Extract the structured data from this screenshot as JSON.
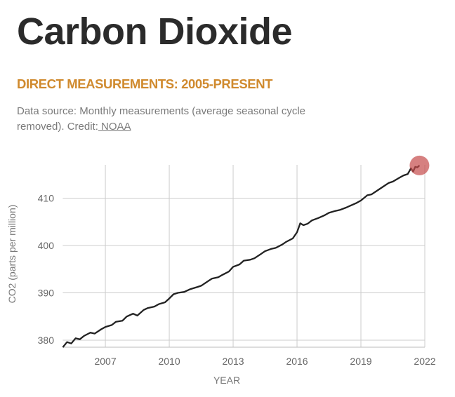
{
  "header": {
    "title": "Carbon Dioxide",
    "subtitle": "DIRECT MEASUREMENTS: 2005-PRESENT",
    "description": "Data source: Monthly measurements (average seasonal cycle removed). Credit:",
    "credit_link": " NOAA"
  },
  "chart_data": {
    "type": "line",
    "title": "",
    "xlabel": "YEAR",
    "ylabel": "CO2 (parts per million)",
    "xlim": [
      2005,
      2022
    ],
    "ylim": [
      378.5,
      417.2
    ],
    "xticks": [
      2007,
      2010,
      2013,
      2016,
      2019,
      2022
    ],
    "yticks": [
      380,
      390,
      400,
      410
    ],
    "grid": true,
    "line_color": "#222222",
    "highlight_color": "#c44a4a",
    "highlight_point": {
      "x": 2021.75,
      "y": 416.9
    },
    "series": [
      {
        "x": [
          2005.0,
          2005.2,
          2005.4,
          2005.6,
          2005.8,
          2006.0,
          2006.3,
          2006.5,
          2006.8,
          2007.0,
          2007.3,
          2007.5,
          2007.8,
          2008.0,
          2008.3,
          2008.5,
          2008.8,
          2009.0,
          2009.3,
          2009.5,
          2009.8,
          2010.0,
          2010.2,
          2010.4,
          2010.7,
          2011.0,
          2011.3,
          2011.5,
          2011.8,
          2012.0,
          2012.3,
          2012.5,
          2012.8,
          2013.0,
          2013.3,
          2013.5,
          2013.8,
          2014.0,
          2014.3,
          2014.5,
          2014.8,
          2015.0,
          2015.3,
          2015.5,
          2015.8,
          2016.0,
          2016.15,
          2016.3,
          2016.5,
          2016.7,
          2017.0,
          2017.3,
          2017.5,
          2017.8,
          2018.0,
          2018.3,
          2018.5,
          2018.8,
          2019.0,
          2019.3,
          2019.5,
          2019.8,
          2020.0,
          2020.3,
          2020.5,
          2020.8,
          2021.0,
          2021.2,
          2021.35,
          2021.45,
          2021.55,
          2021.65,
          2021.75
        ],
        "y": [
          378.5,
          379.6,
          379.3,
          380.4,
          380.2,
          380.9,
          381.6,
          381.4,
          382.3,
          382.8,
          383.2,
          383.9,
          384.1,
          385.0,
          385.6,
          385.2,
          386.4,
          386.8,
          387.1,
          387.6,
          388.0,
          388.8,
          389.7,
          390.0,
          390.2,
          390.8,
          391.2,
          391.5,
          392.4,
          393.0,
          393.3,
          393.8,
          394.5,
          395.5,
          396.0,
          396.8,
          397.0,
          397.3,
          398.2,
          398.8,
          399.3,
          399.5,
          400.2,
          400.8,
          401.5,
          402.8,
          404.7,
          404.3,
          404.6,
          405.3,
          405.8,
          406.4,
          406.9,
          407.3,
          407.5,
          408.0,
          408.4,
          409.0,
          409.5,
          410.6,
          410.8,
          411.7,
          412.3,
          413.2,
          413.5,
          414.3,
          414.8,
          415.1,
          416.3,
          415.6,
          416.6,
          416.5,
          416.9
        ]
      }
    ]
  }
}
